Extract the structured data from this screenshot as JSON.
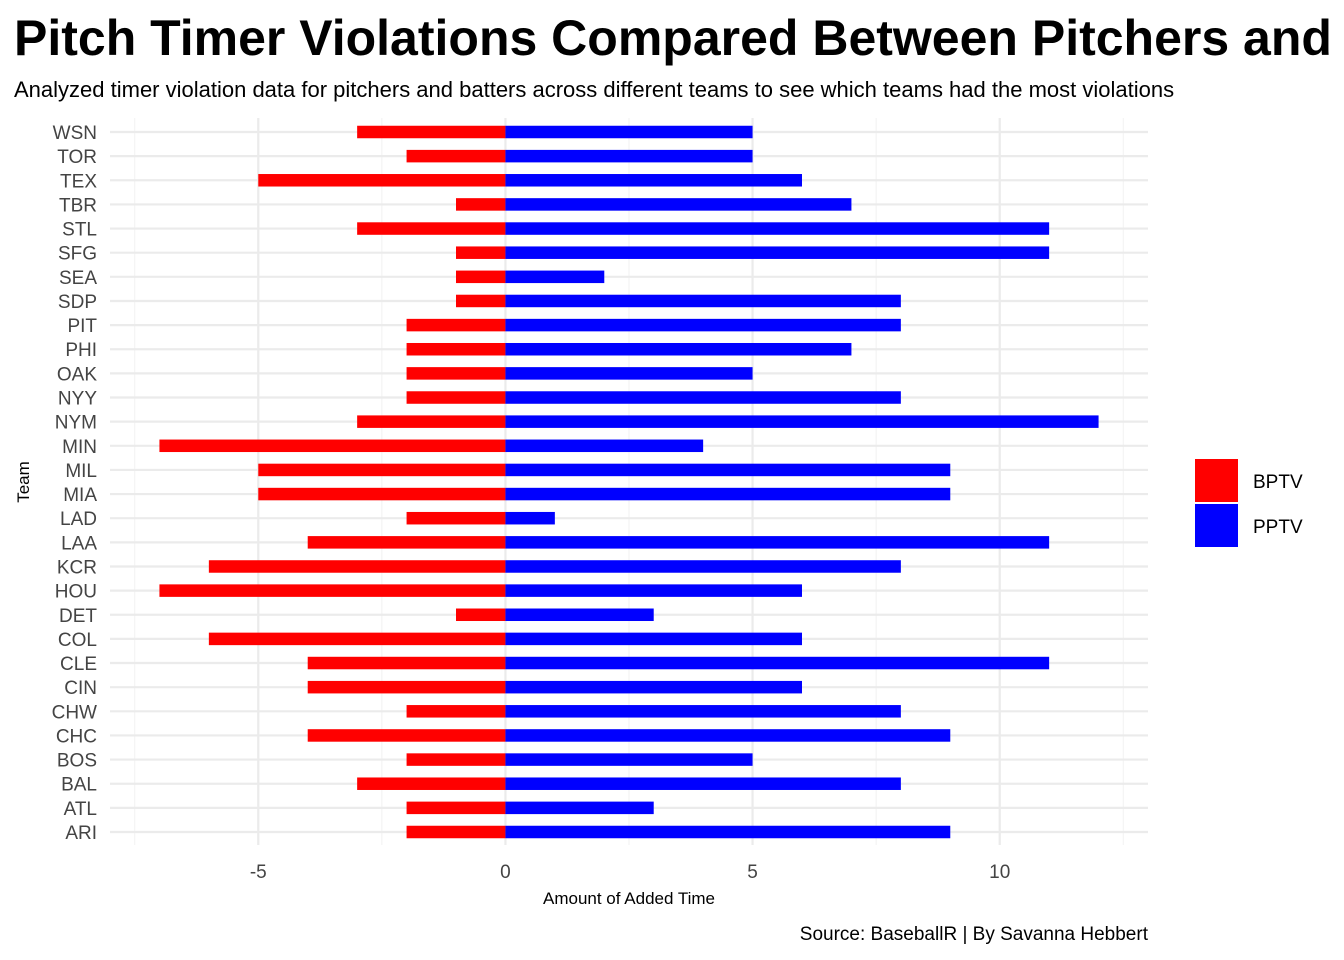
{
  "chart_data": {
    "type": "bar",
    "orientation": "horizontal",
    "title": "Pitch Timer Violations Compared Between Pitchers and Batters",
    "subtitle": "Analyzed timer violation data for pitchers and batters across different teams to see which teams had the most violations",
    "caption": "Source: BaseballR | By Savanna Hebbert",
    "xlabel": "Amount of Added Time",
    "ylabel": "Team",
    "xlim": [
      -8,
      13
    ],
    "xticks": [
      -5,
      0,
      5,
      10
    ],
    "xtick_labels": [
      "-5",
      "0",
      "5",
      "10"
    ],
    "grid": true,
    "legend_position": "right",
    "categories": [
      "WSN",
      "TOR",
      "TEX",
      "TBR",
      "STL",
      "SFG",
      "SEA",
      "SDP",
      "PIT",
      "PHI",
      "OAK",
      "NYY",
      "NYM",
      "MIN",
      "MIL",
      "MIA",
      "LAD",
      "LAA",
      "KCR",
      "HOU",
      "DET",
      "COL",
      "CLE",
      "CIN",
      "CHW",
      "CHC",
      "BOS",
      "BAL",
      "ATL",
      "ARI"
    ],
    "series": [
      {
        "name": "BPTV",
        "color": "#ff0000",
        "values": [
          -3,
          -2,
          -5,
          -1,
          -3,
          -1,
          -1,
          -1,
          -2,
          -2,
          -2,
          -2,
          -3,
          -7,
          -5,
          -5,
          -2,
          -4,
          -6,
          -7,
          -1,
          -6,
          -4,
          -4,
          -2,
          -4,
          -2,
          -3,
          -2,
          -2
        ]
      },
      {
        "name": "PPTV",
        "color": "#0000ff",
        "values": [
          5,
          5,
          6,
          7,
          11,
          11,
          2,
          8,
          8,
          7,
          5,
          8,
          12,
          4,
          9,
          9,
          1,
          11,
          8,
          6,
          3,
          6,
          11,
          6,
          8,
          9,
          5,
          8,
          3,
          9
        ]
      }
    ]
  }
}
